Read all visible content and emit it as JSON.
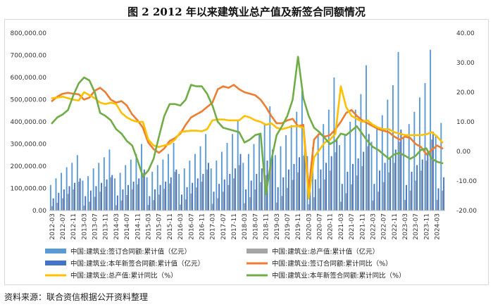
{
  "title": "图 2    2012 年以来建筑业总产值及新签合同额情况",
  "source": "资料来源：联合资信根据公开资料整理",
  "chart_data": {
    "type": "bar",
    "x": [
      "2012-03",
      "2012-05",
      "2012-07",
      "2012-09",
      "2012-11",
      "2013-01",
      "2013-03",
      "2013-05",
      "2013-07",
      "2013-09",
      "2013-11",
      "2014-01",
      "2014-03",
      "2014-05",
      "2014-07",
      "2014-09",
      "2014-11",
      "2015-01",
      "2015-03",
      "2015-05",
      "2015-07",
      "2015-09",
      "2015-11",
      "2016-01",
      "2016-03",
      "2016-05",
      "2016-07",
      "2016-09",
      "2016-11",
      "2017-01",
      "2017-03",
      "2017-05",
      "2017-07",
      "2017-09",
      "2017-11",
      "2018-01",
      "2018-03",
      "2018-05",
      "2018-07",
      "2018-09",
      "2018-11",
      "2019-01",
      "2019-03",
      "2019-05",
      "2019-07",
      "2019-09",
      "2019-11",
      "2020-01",
      "2020-03",
      "2020-05",
      "2020-07",
      "2020-09",
      "2020-11",
      "2021-01",
      "2021-03",
      "2021-05",
      "2021-07",
      "2021-09",
      "2021-11",
      "2022-01",
      "2022-03",
      "2022-05",
      "2022-07",
      "2022-09",
      "2022-11",
      "2023-01",
      "2023-03",
      "2023-05",
      "2023-07",
      "2023-09",
      "2023-11",
      "2024-01",
      "2024-03",
      "2024-05"
    ],
    "x_tick_labels": [
      "2012-03",
      "2012-07",
      "2012-11",
      "2013-03",
      "2013-07",
      "2013-11",
      "2014-03",
      "2014-07",
      "2014-11",
      "2015-03",
      "2015-07",
      "2015-11",
      "2016-03",
      "2016-07",
      "2016-11",
      "2017-03",
      "2017-07",
      "2017-11",
      "2018-03",
      "2018-07",
      "2018-11",
      "2019-03",
      "2019-07",
      "2019-11",
      "2020-03",
      "2020-07",
      "2020-11",
      "2021-03",
      "2021-07",
      "2021-11",
      "2022-03",
      "2022-07",
      "2022-11",
      "2023-03",
      "2023-07",
      "2023-11",
      "2024-03"
    ],
    "y_left_ticks": [
      "0.00",
      "100,000.00",
      "200,000.00",
      "300,000.00",
      "400,000.00",
      "500,000.00",
      "600,000.00",
      "700,000.00",
      "800,000.00"
    ],
    "y_right_ticks": [
      "-20.00",
      "-10.00",
      "0.00",
      "10.00",
      "20.00",
      "30.00",
      "40.00"
    ],
    "ylim_left": [
      0,
      800000
    ],
    "ylim_right": [
      -20,
      40
    ],
    "grid": false,
    "legend_position": "bottom",
    "series": [
      {
        "name": "中国:建筑业:签订合同额:累计值（亿元）",
        "type": "bar",
        "axis": "left",
        "color": "#5b9bd5",
        "values": [
          115000,
          145000,
          170000,
          195000,
          215000,
          250000,
          135000,
          155000,
          190000,
          215000,
          240000,
          275000,
          145000,
          170000,
          205000,
          230000,
          255000,
          300000,
          150000,
          175000,
          205000,
          230000,
          255000,
          305000,
          165000,
          190000,
          225000,
          255000,
          290000,
          345000,
          190000,
          225000,
          265000,
          305000,
          345000,
          405000,
          215000,
          255000,
          300000,
          345000,
          395000,
          470000,
          250000,
          290000,
          340000,
          385000,
          445000,
          545000,
          245000,
          285000,
          345000,
          390000,
          455000,
          600000,
          295000,
          345000,
          400000,
          455000,
          525000,
          655000,
          310000,
          375000,
          430000,
          500000,
          565000,
          715000,
          330000,
          390000,
          445000,
          510000,
          575000,
          725000,
          335000,
          395000
        ]
      },
      {
        "name": "中国:建筑业:总产值:累计值（亿元）",
        "type": "bar",
        "axis": "left",
        "color": "#a5a5a5",
        "values": [
          20000,
          35000,
          55000,
          75000,
          95000,
          130000,
          22000,
          40000,
          62000,
          85000,
          108000,
          150000,
          24000,
          45000,
          70000,
          95000,
          118000,
          168000,
          25000,
          47000,
          72000,
          98000,
          122000,
          175000,
          27000,
          50000,
          77000,
          104000,
          130000,
          185000,
          30000,
          55000,
          85000,
          115000,
          145000,
          205000,
          33000,
          60000,
          95000,
          128000,
          160000,
          230000,
          36000,
          66000,
          102000,
          138000,
          172000,
          248000,
          28000,
          60000,
          100000,
          140000,
          180000,
          263000,
          40000,
          78000,
          118000,
          158000,
          200000,
          290000,
          45000,
          85000,
          128000,
          172000,
          215000,
          310000,
          48000,
          90000,
          135000,
          180000,
          225000,
          320000,
          48000,
          90000
        ]
      },
      {
        "name": "中国:建筑业:本年新签合同额:累计值（亿元）",
        "type": "bar",
        "axis": "left",
        "color": "#4472c4",
        "values": [
          55000,
          80000,
          95000,
          110000,
          125000,
          145000,
          65000,
          90000,
          110000,
          125000,
          140000,
          160000,
          68000,
          95000,
          115000,
          130000,
          145000,
          185000,
          65000,
          95000,
          115000,
          130000,
          150000,
          185000,
          72000,
          105000,
          125000,
          145000,
          165000,
          215000,
          85000,
          120000,
          140000,
          165000,
          190000,
          255000,
          95000,
          135000,
          165000,
          190000,
          225000,
          275000,
          105000,
          150000,
          185000,
          210000,
          240000,
          290000,
          85000,
          140000,
          185000,
          215000,
          245000,
          325000,
          120000,
          175000,
          210000,
          235000,
          265000,
          345000,
          120000,
          180000,
          215000,
          240000,
          275000,
          365000,
          115000,
          175000,
          205000,
          230000,
          265000,
          355000,
          100000,
          150000
        ]
      },
      {
        "name": "中国:建筑业:签订合同额:累计同比（%）",
        "type": "line",
        "axis": "right",
        "color": "#ed7d31",
        "values": [
          17.0,
          18.5,
          19.5,
          19.8,
          19.5,
          19.3,
          17.5,
          18.2,
          20.5,
          21.5,
          20.0,
          17.5,
          16.5,
          17.0,
          15.5,
          12.5,
          10.5,
          8.0,
          3.0,
          0.8,
          -0.5,
          1.0,
          3.5,
          4.5,
          6.0,
          9.0,
          11.5,
          12.5,
          13.5,
          15.0,
          16.5,
          21.0,
          22.0,
          21.5,
          22.5,
          21.0,
          20.0,
          19.5,
          19.0,
          17.5,
          15.0,
          12.0,
          9.5,
          9.5,
          10.5,
          11.0,
          8.5,
          9.0,
          -13.0,
          4.0,
          6.0,
          5.0,
          5.5,
          7.5,
          10.0,
          13.0,
          14.0,
          12.0,
          10.5,
          9.5,
          8.5,
          7.5,
          7.0,
          6.5,
          5.0,
          4.0,
          5.0,
          4.5,
          2.5,
          1.5,
          -1.0,
          0.5,
          2.0,
          1.0
        ]
      },
      {
        "name": "中国:建筑业:总产值:累计同比（%）",
        "type": "line",
        "axis": "right",
        "color": "#ffc000",
        "values": [
          18.0,
          18.2,
          18.5,
          18.0,
          17.5,
          17.2,
          20.0,
          19.0,
          18.0,
          16.5,
          16.0,
          16.5,
          16.0,
          13.0,
          11.5,
          10.5,
          10.0,
          10.0,
          4.0,
          2.0,
          1.5,
          2.0,
          2.5,
          4.0,
          6.5,
          6.8,
          7.0,
          7.0,
          6.8,
          7.5,
          10.5,
          10.8,
          10.8,
          10.5,
          10.5,
          10.5,
          12.0,
          11.5,
          10.5,
          10.0,
          9.0,
          9.5,
          8.0,
          7.5,
          8.0,
          8.5,
          8.5,
          8.0,
          -16.0,
          -2.0,
          0.5,
          3.0,
          4.0,
          6.0,
          22.0,
          15.0,
          12.0,
          11.0,
          10.0,
          10.5,
          9.0,
          8.0,
          7.5,
          7.5,
          6.5,
          6.0,
          5.5,
          5.5,
          5.5,
          5.5,
          5.8,
          6.5,
          5.0,
          3.0
        ]
      },
      {
        "name": "中国:建筑业:本年新签合同额:累计同比（%）",
        "type": "line",
        "axis": "right",
        "color": "#70ad47",
        "values": [
          9.5,
          11.5,
          12.5,
          14.0,
          19.0,
          23.0,
          25.0,
          24.0,
          20.0,
          13.0,
          12.0,
          10.5,
          7.5,
          6.0,
          3.5,
          2.0,
          -3.0,
          -8.5,
          -6.5,
          -2.5,
          5.0,
          12.0,
          16.0,
          16.0,
          15.5,
          17.5,
          22.5,
          22.0,
          22.0,
          19.5,
          15.5,
          10.0,
          8.0,
          7.5,
          7.0,
          6.5,
          3.0,
          4.0,
          5.5,
          6.0,
          -14.5,
          -3.0,
          5.5,
          8.5,
          12.0,
          17.5,
          32.0,
          18.0,
          12.0,
          8.0,
          6.5,
          4.5,
          2.5,
          3.5,
          6.0,
          5.5,
          7.0,
          8.5,
          6.0,
          3.5,
          1.5,
          0.5,
          -1.0,
          -2.5,
          -1.0,
          -0.5,
          -1.5,
          -2.5,
          -1.5,
          0.5,
          1.0,
          -2.5,
          -3.5,
          -4.0
        ]
      }
    ]
  }
}
